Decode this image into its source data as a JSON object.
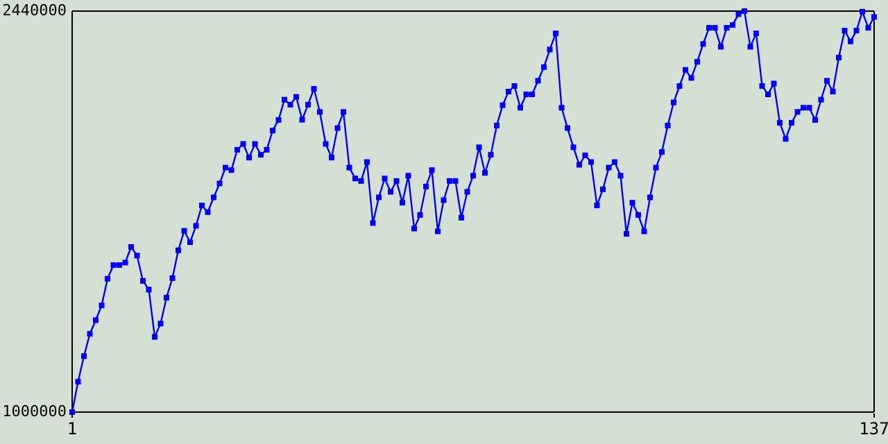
{
  "chart_data": {
    "type": "line",
    "marker": "square",
    "line_style": "solid",
    "grid": false,
    "x": [
      1,
      2,
      3,
      4,
      5,
      6,
      7,
      8,
      9,
      10,
      11,
      12,
      13,
      14,
      15,
      16,
      17,
      18,
      19,
      20,
      21,
      22,
      23,
      24,
      25,
      26,
      27,
      28,
      29,
      30,
      31,
      32,
      33,
      34,
      35,
      36,
      37,
      38,
      39,
      40,
      41,
      42,
      43,
      44,
      45,
      46,
      47,
      48,
      49,
      50,
      51,
      52,
      53,
      54,
      55,
      56,
      57,
      58,
      59,
      60,
      61,
      62,
      63,
      64,
      65,
      66,
      67,
      68,
      69,
      70,
      71,
      72,
      73,
      74,
      75,
      76,
      77,
      78,
      79,
      80,
      81,
      82,
      83,
      84,
      85,
      86,
      87,
      88,
      89,
      90,
      91,
      92,
      93,
      94,
      95,
      96,
      97,
      98,
      99,
      100,
      101,
      102,
      103,
      104,
      105,
      106,
      107,
      108,
      109,
      110,
      111,
      112,
      113,
      114,
      115,
      116,
      117,
      118,
      119,
      120,
      121,
      122,
      123,
      124,
      125,
      126,
      127,
      128,
      129,
      130,
      131,
      132,
      133,
      134,
      135,
      136,
      137
    ],
    "series": [
      {
        "color": "#0000ff",
        "values": [
          1000000,
          1109000,
          1201000,
          1281000,
          1330000,
          1383000,
          1479000,
          1528000,
          1528000,
          1537000,
          1593000,
          1562000,
          1471000,
          1440000,
          1270000,
          1318000,
          1411000,
          1481000,
          1581000,
          1651000,
          1610000,
          1669000,
          1742000,
          1718000,
          1771000,
          1821000,
          1878000,
          1869000,
          1942000,
          1963000,
          1914000,
          1963000,
          1924000,
          1942000,
          2011000,
          2049000,
          2122000,
          2104000,
          2132000,
          2050000,
          2104000,
          2161000,
          2078000,
          1963000,
          1914000,
          2020000,
          2078000,
          1878000,
          1839000,
          1830000,
          1898000,
          1679000,
          1771000,
          1839000,
          1791000,
          1830000,
          1752000,
          1849000,
          1659000,
          1708000,
          1810000,
          1869000,
          1649000,
          1761000,
          1830000,
          1830000,
          1698000,
          1791000,
          1849000,
          1951000,
          1859000,
          1924000,
          2029000,
          2102000,
          2151000,
          2171000,
          2093000,
          2141000,
          2141000,
          2190000,
          2239000,
          2302000,
          2360000,
          2093000,
          2020000,
          1951000,
          1888000,
          1922000,
          1898000,
          1742000,
          1800000,
          1878000,
          1898000,
          1849000,
          1640000,
          1752000,
          1708000,
          1649000,
          1771000,
          1878000,
          1934000,
          2029000,
          2112000,
          2171000,
          2229000,
          2200000,
          2258000,
          2322000,
          2380000,
          2380000,
          2312000,
          2380000,
          2390000,
          2429000,
          2440000,
          2312000,
          2360000,
          2171000,
          2141000,
          2180000,
          2039000,
          1981000,
          2039000,
          2078000,
          2093000,
          2093000,
          2049000,
          2122000,
          2190000,
          2151000,
          2273000,
          2370000,
          2331000,
          2370000,
          2438000,
          2380000,
          2419000
        ]
      }
    ],
    "xlim": [
      1,
      137
    ],
    "xticks": [
      1,
      137
    ],
    "ylim": [
      1000000,
      2440000
    ],
    "yticks": [
      1000000,
      2440000
    ]
  }
}
